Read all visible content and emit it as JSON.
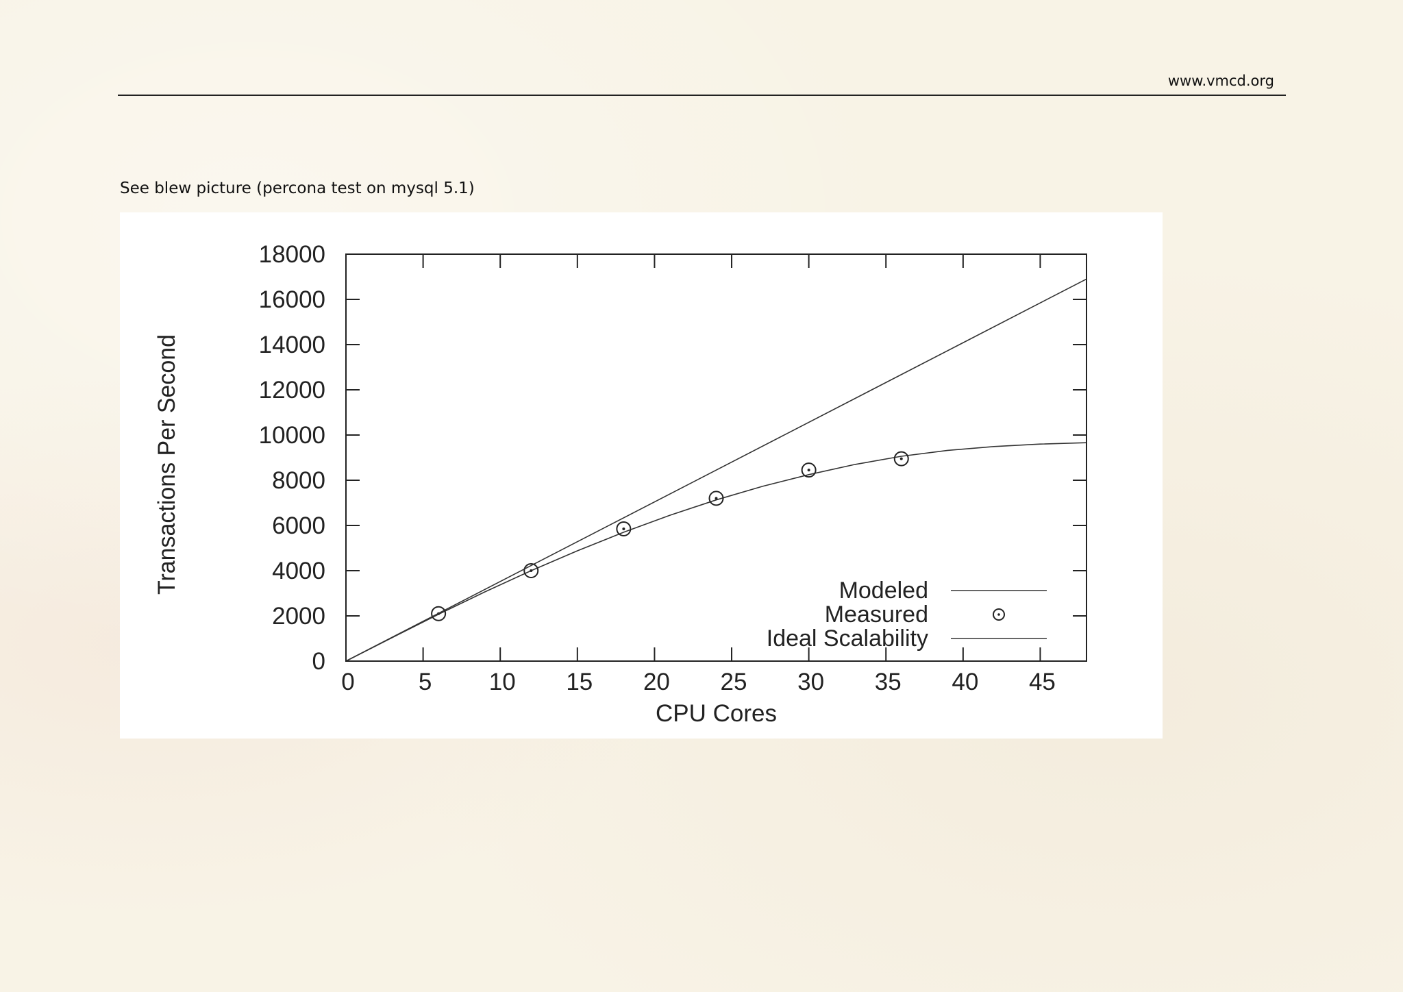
{
  "header": {
    "site_url": "www.vmcd.org"
  },
  "caption": "See blew picture (percona test on mysql 5.1)",
  "chart_data": {
    "type": "line",
    "xlabel": "CPU Cores",
    "ylabel": "Transactions Per Second",
    "xlim": [
      0,
      48
    ],
    "ylim": [
      0,
      18000
    ],
    "x_ticks": [
      0,
      5,
      10,
      15,
      20,
      25,
      30,
      35,
      40,
      45
    ],
    "y_ticks": [
      0,
      2000,
      4000,
      6000,
      8000,
      10000,
      12000,
      14000,
      16000,
      18000
    ],
    "legend_position": "bottom-right",
    "series": [
      {
        "name": "Modeled",
        "kind": "line",
        "x": [
          0,
          3,
          6,
          9,
          12,
          15,
          18,
          21,
          24,
          27,
          30,
          33,
          36,
          39,
          42,
          45,
          48
        ],
        "y": [
          0,
          1040,
          2070,
          3060,
          4000,
          4880,
          5700,
          6450,
          7130,
          7730,
          8250,
          8700,
          9060,
          9320,
          9490,
          9600,
          9660
        ]
      },
      {
        "name": "Measured",
        "kind": "scatter",
        "marker": "circle-dot",
        "x": [
          6,
          12,
          18,
          24,
          30,
          36
        ],
        "y": [
          2100,
          4000,
          5850,
          7200,
          8450,
          8950
        ]
      },
      {
        "name": "Ideal Scalability",
        "kind": "line",
        "x": [
          0,
          48
        ],
        "y": [
          0,
          16900
        ]
      }
    ]
  }
}
